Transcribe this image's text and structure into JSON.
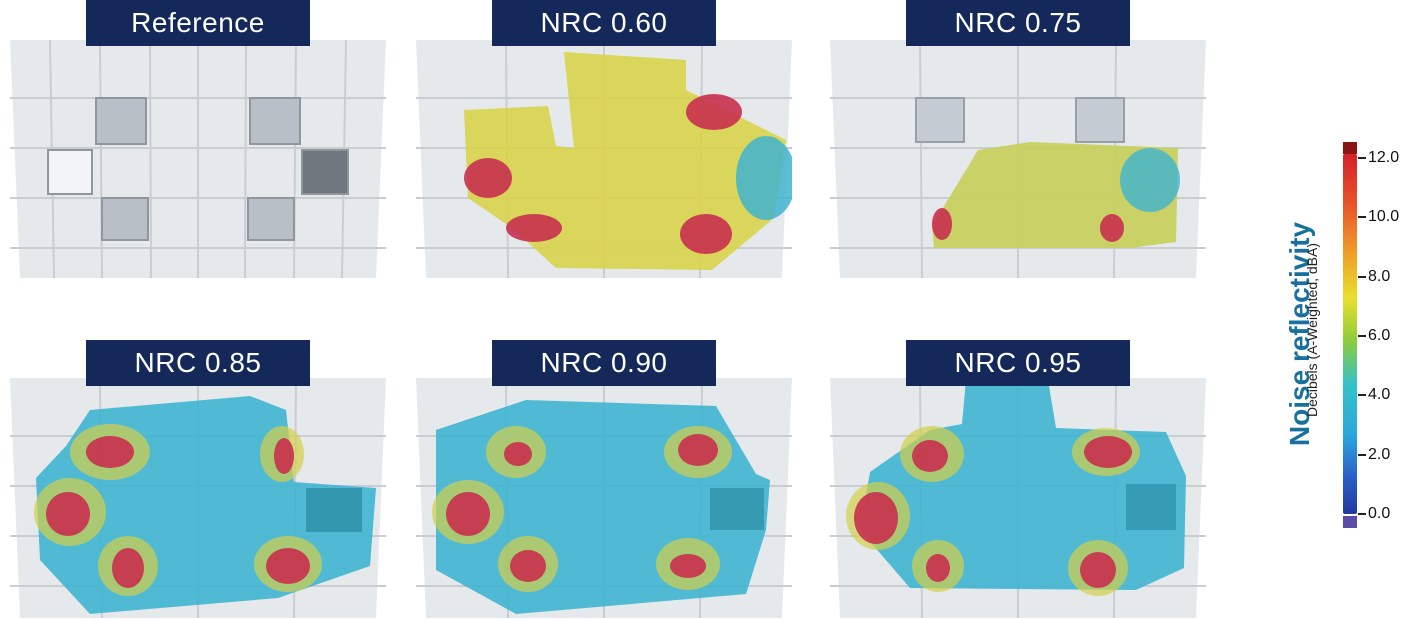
{
  "panels": [
    {
      "label": "Reference"
    },
    {
      "label": "NRC 0.60"
    },
    {
      "label": "NRC 0.75"
    },
    {
      "label": "NRC 0.85"
    },
    {
      "label": "NRC 0.90"
    },
    {
      "label": "NRC 0.95"
    }
  ],
  "legend": {
    "title": "Noise reflectivity",
    "subtitle": "Decibels (A-Weighted, dBA)",
    "ticks": [
      "12.0",
      "10.0",
      "8.0",
      "6.0",
      "4.0",
      "2.0",
      "0.0"
    ],
    "max_color": "#8a1414",
    "min_color": "#5a4ca8"
  },
  "colors": {
    "label_bg": "#14285a",
    "title": "#17709e"
  }
}
